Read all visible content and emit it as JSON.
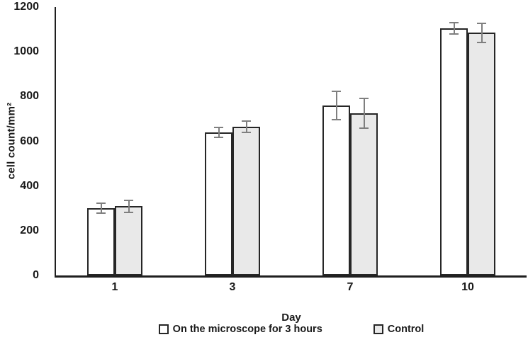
{
  "chart_data": {
    "type": "bar",
    "title": "",
    "xlabel": "Day",
    "ylabel": "cell count/mm²",
    "categories": [
      "1",
      "3",
      "7",
      "10"
    ],
    "series": [
      {
        "name": "On the microscope for 3 hours",
        "fill": "#ffffff",
        "values": [
          300,
          640,
          760,
          1105
        ],
        "errors": [
          25,
          25,
          65,
          30
        ]
      },
      {
        "name": "Control",
        "fill": "#e9e9e9",
        "values": [
          310,
          665,
          725,
          1085
        ],
        "errors": [
          30,
          30,
          70,
          45
        ]
      }
    ],
    "ylim": [
      0,
      1200
    ],
    "yticks": [
      0,
      200,
      400,
      600,
      800,
      1000,
      1200
    ],
    "grid": false,
    "legend_position": "bottom",
    "colors": {
      "bar_border": "#262626",
      "error_bar": "#7f7f7f",
      "axis": "#1f1f1f",
      "text": "#1a1a1a",
      "background": "#ffffff"
    }
  }
}
